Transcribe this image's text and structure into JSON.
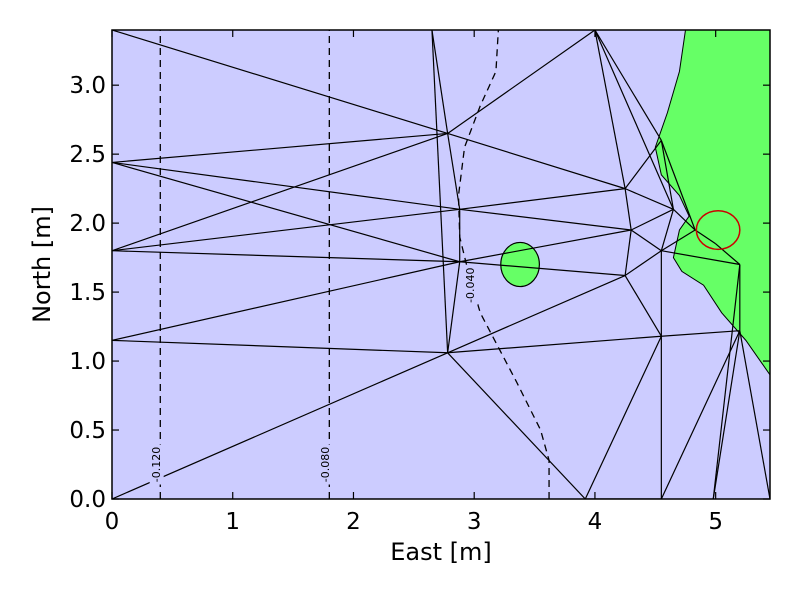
{
  "chart_data": {
    "type": "triangulated-contour",
    "xlabel": "East [m]",
    "ylabel": "North [m]",
    "xlim": [
      0,
      5.45
    ],
    "ylim": [
      0,
      3.4
    ],
    "xticks": [
      {
        "value": 0,
        "label": "0"
      },
      {
        "value": 1,
        "label": "1"
      },
      {
        "value": 2,
        "label": "2"
      },
      {
        "value": 3,
        "label": "3"
      },
      {
        "value": 4,
        "label": "4"
      },
      {
        "value": 5,
        "label": "5"
      }
    ],
    "yticks": [
      {
        "value": 0.0,
        "label": "0.0"
      },
      {
        "value": 0.5,
        "label": "0.5"
      },
      {
        "value": 1.0,
        "label": "1.0"
      },
      {
        "value": 1.5,
        "label": "1.5"
      },
      {
        "value": 2.0,
        "label": "2.0"
      },
      {
        "value": 2.5,
        "label": "2.5"
      },
      {
        "value": 3.0,
        "label": "3.0"
      }
    ],
    "grid": false,
    "colors": {
      "background_fill": "#ccccff",
      "positive_fill": "#66ff66",
      "mesh_line": "#000000",
      "red_contour": "#cc0000"
    },
    "mesh_nodes": [
      [
        0,
        3.4
      ],
      [
        0,
        2.44
      ],
      [
        0,
        1.8
      ],
      [
        0,
        1.15
      ],
      [
        0,
        0
      ],
      [
        2.78,
        2.65
      ],
      [
        2.88,
        2.1
      ],
      [
        2.88,
        1.72
      ],
      [
        2.78,
        1.06
      ],
      [
        4.25,
        2.25
      ],
      [
        4.3,
        1.95
      ],
      [
        4.25,
        1.62
      ],
      [
        4.55,
        1.18
      ],
      [
        3.92,
        0
      ],
      [
        4.55,
        2.6
      ],
      [
        4.65,
        2.1
      ],
      [
        4.55,
        1.8
      ],
      [
        4.83,
        1.95
      ],
      [
        5.0,
        1.85
      ],
      [
        5.2,
        1.7
      ],
      [
        5.2,
        1.22
      ],
      [
        2.65,
        3.4
      ],
      [
        4.0,
        3.4
      ],
      [
        4.55,
        0
      ],
      [
        4.98,
        0
      ],
      [
        5.45,
        0
      ]
    ],
    "mesh_edges": [
      [
        0,
        5
      ],
      [
        1,
        5
      ],
      [
        1,
        6
      ],
      [
        2,
        6
      ],
      [
        2,
        7
      ],
      [
        3,
        7
      ],
      [
        3,
        8
      ],
      [
        4,
        8
      ],
      [
        2,
        5
      ],
      [
        1,
        7
      ],
      [
        5,
        6
      ],
      [
        6,
        7
      ],
      [
        7,
        8
      ],
      [
        21,
        5
      ],
      [
        21,
        8
      ],
      [
        5,
        22
      ],
      [
        22,
        9
      ],
      [
        22,
        14
      ],
      [
        5,
        9
      ],
      [
        6,
        9
      ],
      [
        6,
        10
      ],
      [
        7,
        10
      ],
      [
        7,
        11
      ],
      [
        8,
        11
      ],
      [
        8,
        12
      ],
      [
        8,
        13
      ],
      [
        9,
        10
      ],
      [
        10,
        11
      ],
      [
        11,
        12
      ],
      [
        12,
        13
      ],
      [
        9,
        14
      ],
      [
        9,
        15
      ],
      [
        10,
        15
      ],
      [
        10,
        16
      ],
      [
        11,
        16
      ],
      [
        12,
        16
      ],
      [
        14,
        15
      ],
      [
        15,
        16
      ],
      [
        15,
        17
      ],
      [
        16,
        17
      ],
      [
        17,
        18
      ],
      [
        18,
        19
      ],
      [
        16,
        19
      ],
      [
        19,
        20
      ],
      [
        12,
        20
      ],
      [
        12,
        23
      ],
      [
        20,
        24
      ],
      [
        20,
        25
      ],
      [
        23,
        20
      ],
      [
        13,
        23
      ],
      [
        24,
        19
      ],
      [
        14,
        17
      ],
      [
        22,
        15
      ]
    ],
    "positive_region": [
      [
        4.75,
        3.4
      ],
      [
        5.45,
        3.4
      ],
      [
        5.45,
        0.9
      ],
      [
        5.25,
        1.15
      ],
      [
        5.05,
        1.35
      ],
      [
        4.9,
        1.55
      ],
      [
        4.72,
        1.65
      ],
      [
        4.65,
        1.75
      ],
      [
        4.7,
        1.95
      ],
      [
        4.78,
        2.05
      ],
      [
        4.7,
        2.2
      ],
      [
        4.55,
        2.35
      ],
      [
        4.5,
        2.55
      ],
      [
        4.6,
        2.8
      ],
      [
        4.7,
        3.1
      ]
    ],
    "small_positive_ellipse": {
      "cx": 3.38,
      "cy": 1.7,
      "rx": 0.16,
      "ry": 0.16
    },
    "red_contour_ellipse": {
      "cx": 5.02,
      "cy": 1.95,
      "rx": 0.18,
      "ry": 0.14
    },
    "contours": [
      {
        "level": "-0.120",
        "points": [
          [
            0.4,
            0
          ],
          [
            0.4,
            3.4
          ]
        ],
        "label_at": [
          0.37,
          0.25
        ]
      },
      {
        "level": "-0.080",
        "points": [
          [
            1.8,
            0
          ],
          [
            1.8,
            3.4
          ]
        ],
        "label_at": [
          1.77,
          0.25
        ]
      },
      {
        "level": "-0.040",
        "points": [
          [
            3.62,
            0
          ],
          [
            3.62,
            0.28
          ],
          [
            3.55,
            0.5
          ],
          [
            3.35,
            0.85
          ],
          [
            3.2,
            1.1
          ],
          [
            3.05,
            1.35
          ],
          [
            2.95,
            1.65
          ],
          [
            2.88,
            1.9
          ],
          [
            2.87,
            2.2
          ],
          [
            2.92,
            2.55
          ],
          [
            3.05,
            2.85
          ],
          [
            3.18,
            3.1
          ],
          [
            3.2,
            3.4
          ]
        ],
        "label_at": [
          2.97,
          1.55
        ]
      }
    ]
  }
}
